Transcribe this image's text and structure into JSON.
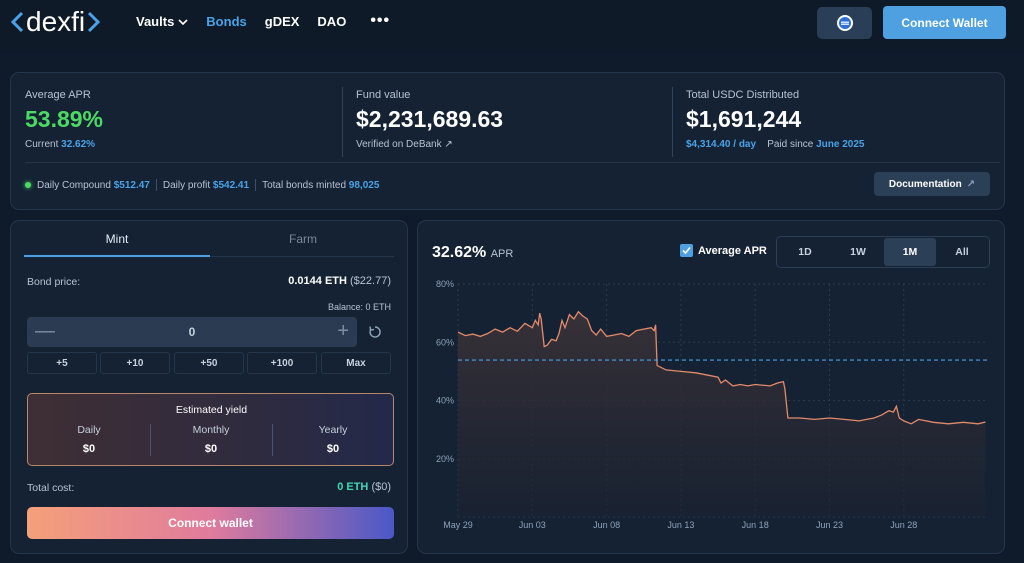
{
  "nav": {
    "logo": "dexfi",
    "links": [
      {
        "label": "Vaults",
        "active": false,
        "dropdown": true
      },
      {
        "label": "Bonds",
        "active": true,
        "dropdown": false
      },
      {
        "label": "gDEX",
        "active": false,
        "dropdown": false
      },
      {
        "label": "DAO",
        "active": false,
        "dropdown": false
      }
    ],
    "more_icon": "ellipsis-icon",
    "chain_icon": "network-icon",
    "connect_label": "Connect Wallet"
  },
  "stats": {
    "apr": {
      "label": "Average APR",
      "value": "53.89%",
      "current_label": "Current",
      "current_value": "32.62%"
    },
    "fund": {
      "label": "Fund value",
      "value": "$2,231,689.63",
      "verified": "Verified on DeBank"
    },
    "usdc": {
      "label": "Total USDC Distributed",
      "value": "$1,691,244",
      "per_day": "$4,314.40 / day",
      "paid_since_label": "Paid since",
      "paid_since": "June 2025"
    },
    "daily_compound_label": "Daily Compound",
    "daily_compound": "$512.47",
    "daily_profit_label": "Daily profit",
    "daily_profit": "$542.41",
    "bonds_minted_label": "Total bonds minted",
    "bonds_minted": "98,025",
    "doc_label": "Documentation"
  },
  "mint": {
    "tabs": [
      "Mint",
      "Farm"
    ],
    "active_tab": "Mint",
    "bond_price_label": "Bond price:",
    "bond_price_eth": "0.0144 ETH",
    "bond_price_usd": "($22.77)",
    "balance": "Balance: 0 ETH",
    "amount": "0",
    "quick": [
      "+5",
      "+10",
      "+50",
      "+100",
      "Max"
    ],
    "yield_title": "Estimated yield",
    "yield": [
      {
        "label": "Daily",
        "value": "$0"
      },
      {
        "label": "Monthly",
        "value": "$0"
      },
      {
        "label": "Yearly",
        "value": "$0"
      }
    ],
    "total_cost_label": "Total cost:",
    "total_cost_eth": "0 ETH",
    "total_cost_usd": "($0)",
    "connect_label": "Connect wallet"
  },
  "chart": {
    "current": "32.62%",
    "current_unit": "APR",
    "avg_toggle_label": "Average APR",
    "avg_checked": true,
    "ranges": [
      "1D",
      "1W",
      "1M",
      "All"
    ],
    "active_range": "1M",
    "colors": {
      "line": "#e38a6a",
      "avg": "#4aa3e8"
    }
  },
  "chart_data": {
    "type": "area",
    "ylim": [
      0,
      80
    ],
    "y_ticks": [
      "0%",
      "20%",
      "40%",
      "60%",
      "80%"
    ],
    "x_ticks": [
      "May 29",
      "Jun 03",
      "Jun 08",
      "Jun 13",
      "Jun 18",
      "Jun 23",
      "Jun 28"
    ],
    "x_tick_days": [
      0,
      5,
      10,
      15,
      20,
      25,
      30
    ],
    "average": 53.89,
    "series": [
      {
        "values": [
          [
            0,
            63.5
          ],
          [
            0.5,
            62.3
          ],
          [
            1,
            62.8
          ],
          [
            1.5,
            62.0
          ],
          [
            2,
            63.0
          ],
          [
            2.5,
            64.5
          ],
          [
            3,
            63.5
          ],
          [
            3.5,
            65.0
          ],
          [
            4,
            63.8
          ],
          [
            4.5,
            66.5
          ],
          [
            5,
            65.0
          ],
          [
            5.2,
            67.5
          ],
          [
            5.4,
            66.0
          ],
          [
            5.5,
            70.0
          ],
          [
            5.6,
            68.0
          ],
          [
            5.8,
            58.5
          ],
          [
            6.0,
            59.0
          ],
          [
            6.3,
            61.0
          ],
          [
            6.6,
            60.5
          ],
          [
            6.8,
            63.0
          ],
          [
            7.0,
            67.5
          ],
          [
            7.2,
            65.0
          ],
          [
            7.5,
            69.5
          ],
          [
            7.8,
            68.0
          ],
          [
            8.1,
            70.5
          ],
          [
            8.4,
            69.0
          ],
          [
            8.7,
            68.0
          ],
          [
            9.0,
            64.0
          ],
          [
            9.3,
            62.5
          ],
          [
            9.6,
            64.5
          ],
          [
            10,
            62.0
          ],
          [
            10.5,
            62.5
          ],
          [
            11,
            63.0
          ],
          [
            11.5,
            62.0
          ],
          [
            12,
            64.0
          ],
          [
            12.5,
            64.5
          ],
          [
            13,
            65.0
          ],
          [
            13.2,
            64.0
          ],
          [
            13.3,
            66.0
          ],
          [
            13.4,
            52.0
          ],
          [
            14,
            50.5
          ],
          [
            15,
            50.0
          ],
          [
            16,
            49.5
          ],
          [
            17,
            48.5
          ],
          [
            17.5,
            48.0
          ],
          [
            17.7,
            46.0
          ],
          [
            18,
            47.0
          ],
          [
            18.5,
            45.0
          ],
          [
            19,
            45.5
          ],
          [
            19.5,
            45.0
          ],
          [
            20,
            45.5
          ],
          [
            21,
            45.0
          ],
          [
            21.5,
            46.0
          ],
          [
            21.9,
            46.5
          ],
          [
            22.0,
            44.0
          ],
          [
            22.2,
            34.0
          ],
          [
            23,
            34.0
          ],
          [
            24,
            33.5
          ],
          [
            25,
            34.0
          ],
          [
            26,
            33.5
          ],
          [
            27,
            33.0
          ],
          [
            27.5,
            33.5
          ],
          [
            28,
            34.0
          ],
          [
            28.5,
            35.0
          ],
          [
            29,
            36.5
          ],
          [
            29.3,
            36.0
          ],
          [
            29.5,
            38.0
          ],
          [
            29.7,
            34.0
          ],
          [
            30,
            33.0
          ],
          [
            30.5,
            32.0
          ],
          [
            31,
            33.5
          ],
          [
            32,
            32.5
          ],
          [
            33,
            32.0
          ],
          [
            34,
            32.5
          ],
          [
            35,
            32.0
          ],
          [
            35.5,
            32.62
          ]
        ]
      }
    ]
  }
}
